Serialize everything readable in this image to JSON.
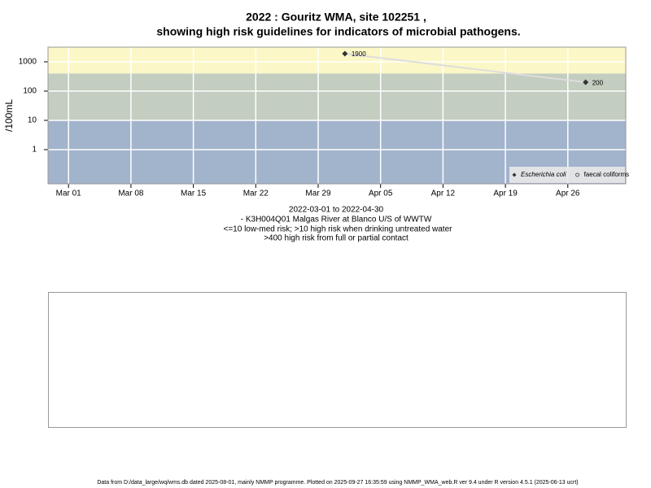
{
  "chart_data": {
    "type": "line",
    "title": "2022 : Gouritz WMA, site 102251 ,",
    "subtitle": "showing high risk guidelines for indicators of microbial pathogens.",
    "ylabel": "/100mL",
    "notes": [
      "2022-03-01 to 2022-04-30",
      "- K3H004Q01 Malgas River at Blanco U/S of WWTW",
      "<=10 low-med risk; >10 high risk when drinking untreated water",
      ">400 high risk from full or partial contact"
    ],
    "footer": "Data from D:/data_large/wq/wms.db dated 2025-08-01, mainly NMMP programme. Plotted on 2025-09-27 16:35:59 using NMMP_WMA_web.R ver 9.4 under R version 4.5.1 (2025-06-13 ucrt)",
    "log_y": true,
    "grid": true,
    "legend_position": "bottom-right",
    "bands": [
      {
        "max": 10,
        "color": "#a2b3cc"
      },
      {
        "max": 400,
        "color": "#c3cdc0"
      },
      {
        "color": "#fcf7c7"
      }
    ],
    "xlim": [
      57.7,
      122.5
    ],
    "xticks": [
      {
        "value": 60,
        "label": "Mar 01"
      },
      {
        "value": 67,
        "label": "Mar 08"
      },
      {
        "value": 74,
        "label": "Mar 15"
      },
      {
        "value": 81,
        "label": "Mar 22"
      },
      {
        "value": 88,
        "label": "Mar 29"
      },
      {
        "value": 95,
        "label": "Apr 05"
      },
      {
        "value": 102,
        "label": "Apr 12"
      },
      {
        "value": 109,
        "label": "Apr 19"
      },
      {
        "value": 116,
        "label": "Apr 26"
      }
    ],
    "ylim": [
      0.068,
      3162
    ],
    "yticks": [
      1,
      10,
      100,
      1000
    ],
    "series": [
      {
        "name": "Escherichia coli",
        "color": "#333333",
        "line_color": "#dddddd",
        "x": [
          91,
          118
        ],
        "values": [
          1900,
          200
        ]
      },
      {
        "name": "faecal coliforms",
        "color": "#333333",
        "x": [],
        "values": []
      }
    ]
  }
}
